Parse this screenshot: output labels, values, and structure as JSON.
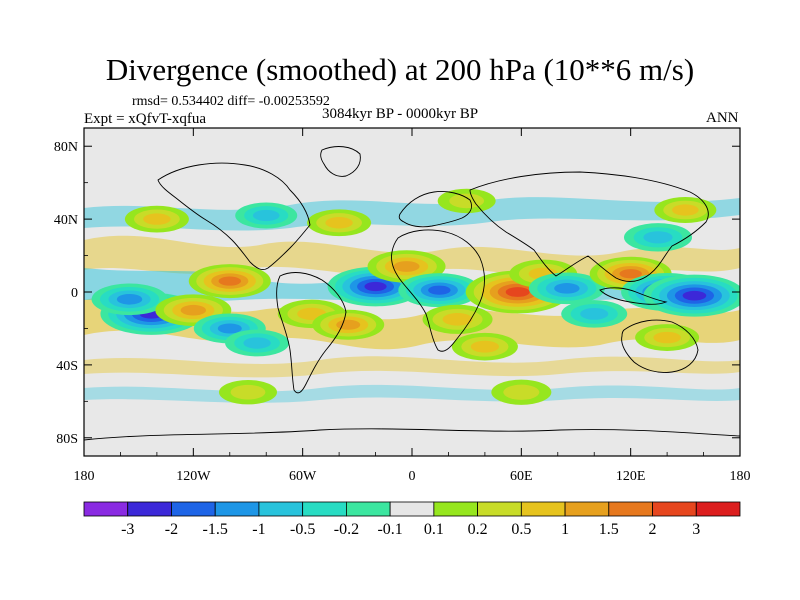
{
  "title": "Divergence (smoothed) at 200 hPa (10**6 m/s)",
  "stats_text": "rmsd= 0.534402 diff= -0.00253592",
  "experiment_text": "Expt = xQfvT-xqfua",
  "period_text": "3084kyr BP - 0000kyr BP",
  "season_text": "ANN",
  "chart_data": {
    "type": "heatmap",
    "projection": "cylindrical-equidistant",
    "lon_range": [
      -180,
      180
    ],
    "lat_range": [
      -90,
      90
    ],
    "x_ticks": [
      {
        "value": -180,
        "label": "180"
      },
      {
        "value": -120,
        "label": "120W"
      },
      {
        "value": -60,
        "label": "60W"
      },
      {
        "value": 0,
        "label": "0"
      },
      {
        "value": 60,
        "label": "60E"
      },
      {
        "value": 120,
        "label": "120E"
      },
      {
        "value": 180,
        "label": "180"
      }
    ],
    "y_ticks": [
      {
        "value": 80,
        "label": "80N"
      },
      {
        "value": 40,
        "label": "40N"
      },
      {
        "value": 0,
        "label": "0"
      },
      {
        "value": -40,
        "label": "40S"
      },
      {
        "value": -80,
        "label": "80S"
      }
    ],
    "colorbar": {
      "levels": [
        -3,
        -2,
        -1.5,
        -1,
        -0.5,
        -0.2,
        -0.1,
        0.1,
        0.2,
        0.5,
        1,
        1.5,
        2,
        3
      ],
      "labels": [
        "-3",
        "-2",
        "-1.5",
        "-1",
        "-0.5",
        "-0.2",
        "-0.1",
        "0.1",
        "0.2",
        "0.5",
        "1",
        "1.5",
        "2",
        "3"
      ],
      "colors": [
        "#8a2be2",
        "#3c28d8",
        "#1e64e6",
        "#1e96e6",
        "#28c3dc",
        "#28dcc3",
        "#3ce6a0",
        "#e6e6e6",
        "#96e61e",
        "#c8dc28",
        "#e6c31e",
        "#e6a01e",
        "#e6781e",
        "#e6461e",
        "#dc1e1e"
      ]
    },
    "features": [
      {
        "lon": -143,
        "lat": -12,
        "value": -2.5
      },
      {
        "lon": -155,
        "lat": -4,
        "value": -1.2
      },
      {
        "lon": -120,
        "lat": -10,
        "value": 1.2
      },
      {
        "lon": -100,
        "lat": 6,
        "value": 1.5
      },
      {
        "lon": -100,
        "lat": -20,
        "value": -1.0
      },
      {
        "lon": -85,
        "lat": -28,
        "value": -0.6
      },
      {
        "lon": -55,
        "lat": -12,
        "value": 0.8
      },
      {
        "lon": -35,
        "lat": -18,
        "value": 1.0
      },
      {
        "lon": -20,
        "lat": 3,
        "value": -2.2
      },
      {
        "lon": -3,
        "lat": 14,
        "value": 1.3
      },
      {
        "lon": 15,
        "lat": 1,
        "value": -1.5
      },
      {
        "lon": 25,
        "lat": -15,
        "value": 0.9
      },
      {
        "lon": 40,
        "lat": -30,
        "value": 0.7
      },
      {
        "lon": 58,
        "lat": 0,
        "value": 2.6
      },
      {
        "lon": 72,
        "lat": 10,
        "value": 0.8
      },
      {
        "lon": 85,
        "lat": 2,
        "value": -1.2
      },
      {
        "lon": 100,
        "lat": -12,
        "value": -0.7
      },
      {
        "lon": 120,
        "lat": 10,
        "value": 1.5
      },
      {
        "lon": 140,
        "lat": 0,
        "value": -2.0
      },
      {
        "lon": 155,
        "lat": -2,
        "value": -2.5
      },
      {
        "lon": 140,
        "lat": -25,
        "value": 0.6
      },
      {
        "lon": 135,
        "lat": 30,
        "value": -0.8
      },
      {
        "lon": 150,
        "lat": 45,
        "value": 0.5
      },
      {
        "lon": -140,
        "lat": 40,
        "value": 0.6
      },
      {
        "lon": -80,
        "lat": 42,
        "value": -0.5
      },
      {
        "lon": -40,
        "lat": 38,
        "value": 0.6
      },
      {
        "lon": 30,
        "lat": 50,
        "value": 0.3
      },
      {
        "lon": 60,
        "lat": -55,
        "value": 0.4
      },
      {
        "lon": -90,
        "lat": -55,
        "value": 0.3
      }
    ]
  }
}
